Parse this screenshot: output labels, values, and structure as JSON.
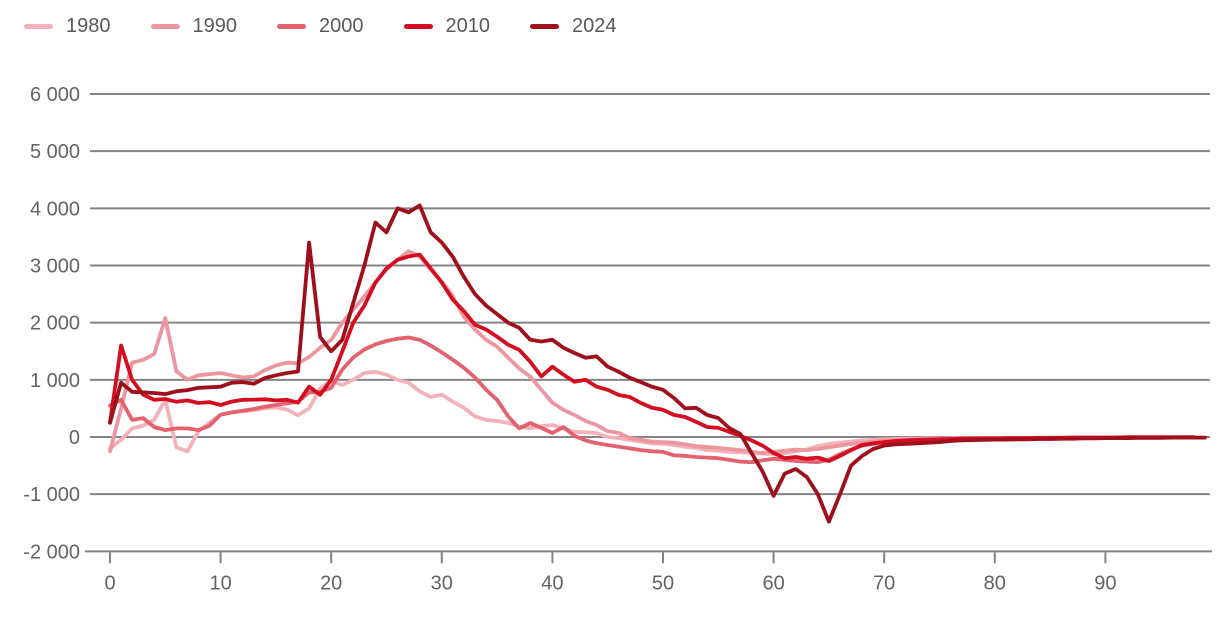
{
  "chart_data": {
    "type": "line",
    "title": "",
    "xlabel": "",
    "ylabel": "",
    "x_start": 0,
    "x_step": 1,
    "xlim": [
      0,
      98
    ],
    "ylim": [
      -2000,
      6000
    ],
    "grid": "horizontal",
    "legend_position": "top-left",
    "x_ticks": [
      0,
      10,
      20,
      30,
      40,
      50,
      60,
      70,
      80,
      90
    ],
    "y_ticks": [
      6000,
      5000,
      4000,
      3000,
      2000,
      1000,
      0,
      -1000,
      -2000
    ],
    "y_tick_labels": [
      "6 000",
      "5 000",
      "4 000",
      "3 000",
      "2 000",
      "1 000",
      "0",
      "-1 000",
      "-2 000"
    ],
    "series": [
      {
        "name": "1980",
        "color": "#f3b1ba",
        "values": [
          -200,
          -50,
          150,
          200,
          300,
          650,
          -180,
          -250,
          100,
          250,
          390,
          430,
          450,
          470,
          500,
          520,
          480,
          380,
          500,
          850,
          980,
          910,
          1000,
          1120,
          1140,
          1090,
          1000,
          950,
          800,
          700,
          740,
          620,
          510,
          360,
          300,
          280,
          245,
          180,
          155,
          190,
          210,
          150,
          90,
          80,
          70,
          0,
          -20,
          -50,
          -80,
          -110,
          -120,
          -140,
          -170,
          -190,
          -230,
          -240,
          -260,
          -270,
          -280,
          -290,
          -300,
          -280,
          -250,
          -220,
          -160,
          -120,
          -100,
          -80,
          -60,
          -50,
          -40,
          -35,
          -30,
          -30,
          -25,
          -25,
          -20,
          -20,
          -20,
          -20,
          -15,
          -15,
          -15,
          -15,
          -10,
          -10,
          -10,
          -10,
          -10,
          -10,
          -10,
          -10,
          -5,
          -5,
          -5,
          -5,
          -5,
          -5,
          -5
        ]
      },
      {
        "name": "1990",
        "color": "#ee96a0",
        "values": [
          -250,
          500,
          1300,
          1350,
          1450,
          2080,
          1150,
          1000,
          1080,
          1100,
          1120,
          1080,
          1040,
          1060,
          1170,
          1250,
          1300,
          1290,
          1400,
          1560,
          1700,
          2000,
          2230,
          2460,
          2700,
          2930,
          3100,
          3250,
          3160,
          2930,
          2720,
          2460,
          2100,
          1880,
          1700,
          1580,
          1385,
          1200,
          1055,
          825,
          600,
          475,
          385,
          280,
          210,
          100,
          70,
          -20,
          -50,
          -80,
          -90,
          -100,
          -130,
          -160,
          -175,
          -190,
          -210,
          -230,
          -260,
          -280,
          -260,
          -240,
          -220,
          -230,
          -210,
          -180,
          -150,
          -120,
          -100,
          -80,
          -60,
          -50,
          -45,
          -40,
          -35,
          -30,
          -30,
          -25,
          -25,
          -20,
          -20,
          -20,
          -15,
          -15,
          -15,
          -10,
          -10,
          -10,
          -10,
          -10,
          -10,
          -5,
          -5,
          -5,
          -5,
          -5,
          -5,
          -5,
          -5
        ]
      },
      {
        "name": "2000",
        "color": "#e4616e",
        "values": [
          550,
          650,
          300,
          330,
          175,
          120,
          150,
          150,
          120,
          200,
          390,
          430,
          460,
          490,
          530,
          560,
          590,
          615,
          780,
          790,
          860,
          1180,
          1390,
          1530,
          1620,
          1680,
          1720,
          1740,
          1700,
          1600,
          1480,
          1350,
          1210,
          1040,
          830,
          650,
          360,
          150,
          245,
          160,
          70,
          175,
          20,
          -60,
          -110,
          -140,
          -170,
          -200,
          -230,
          -250,
          -260,
          -320,
          -330,
          -350,
          -360,
          -370,
          -400,
          -430,
          -440,
          -410,
          -380,
          -400,
          -420,
          -430,
          -440,
          -400,
          -300,
          -220,
          -150,
          -120,
          -90,
          -75,
          -60,
          -50,
          -45,
          -40,
          -35,
          -30,
          -30,
          -25,
          -25,
          -20,
          -20,
          -20,
          -15,
          -15,
          -15,
          -10,
          -10,
          -10,
          -10,
          -10,
          -5,
          -5,
          -5,
          -5,
          -5,
          -5,
          -5
        ]
      },
      {
        "name": "2010",
        "color": "#d40d20",
        "values": [
          250,
          1600,
          1000,
          740,
          650,
          665,
          615,
          640,
          595,
          610,
          560,
          620,
          650,
          655,
          660,
          640,
          650,
          600,
          880,
          740,
          1000,
          1500,
          2000,
          2300,
          2700,
          2950,
          3100,
          3160,
          3190,
          2950,
          2700,
          2400,
          2200,
          1965,
          1880,
          1755,
          1615,
          1525,
          1315,
          1060,
          1230,
          1090,
          965,
          1000,
          880,
          825,
          735,
          700,
          595,
          510,
          475,
          385,
          350,
          265,
          175,
          160,
          90,
          20,
          -60,
          -150,
          -280,
          -370,
          -350,
          -380,
          -360,
          -420,
          -330,
          -230,
          -140,
          -110,
          -90,
          -70,
          -60,
          -50,
          -45,
          -40,
          -35,
          -30,
          -30,
          -25,
          -25,
          -20,
          -20,
          -20,
          -15,
          -15,
          -15,
          -10,
          -10,
          -10,
          -10,
          -10,
          -5,
          -5,
          -5,
          -5,
          -5,
          -5,
          -5
        ]
      },
      {
        "name": "2024",
        "color": "#9d101c",
        "values": [
          250,
          950,
          790,
          780,
          770,
          750,
          800,
          820,
          860,
          870,
          880,
          950,
          960,
          930,
          1030,
          1080,
          1120,
          1145,
          3400,
          1750,
          1500,
          1700,
          2350,
          3000,
          3750,
          3580,
          4000,
          3930,
          4050,
          3580,
          3400,
          3150,
          2800,
          2500,
          2300,
          2150,
          2000,
          1910,
          1700,
          1670,
          1700,
          1560,
          1470,
          1385,
          1410,
          1230,
          1140,
          1035,
          960,
          880,
          825,
          680,
          500,
          510,
          385,
          330,
          155,
          50,
          -280,
          -600,
          -1030,
          -640,
          -560,
          -700,
          -1000,
          -1480,
          -1000,
          -500,
          -330,
          -210,
          -150,
          -130,
          -120,
          -110,
          -100,
          -90,
          -70,
          -60,
          -55,
          -50,
          -45,
          -45,
          -40,
          -40,
          -35,
          -35,
          -30,
          -30,
          -25,
          -25,
          -20,
          -20,
          -20,
          -15,
          -15,
          -15,
          -10,
          -10,
          -10,
          -10
        ]
      }
    ]
  },
  "style": {
    "grid_color": "#848484",
    "axis_color": "#848484",
    "tick_label_color": "#636363",
    "legend_label_color": "#595959",
    "background": "#ffffff"
  }
}
